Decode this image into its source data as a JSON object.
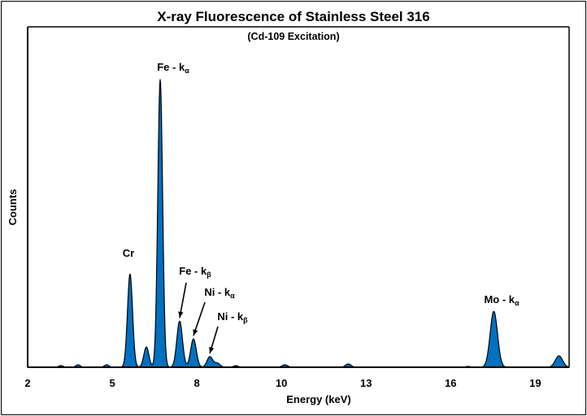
{
  "chart_data": {
    "type": "area",
    "title": "X-ray Fluorescence of Stainless Steel 316",
    "subtitle": "(Cd-109 Excitation)",
    "xlabel": "Energy (keV)",
    "ylabel": "Counts",
    "xlim": [
      2,
      21.2
    ],
    "ylim": [
      0,
      420
    ],
    "xticks": [
      {
        "value": 2,
        "label": "2"
      },
      {
        "value": 5,
        "label": "5"
      },
      {
        "value": 8,
        "label": "8"
      },
      {
        "value": 11,
        "label": "10"
      },
      {
        "value": 14,
        "label": "13"
      },
      {
        "value": 17,
        "label": "16"
      },
      {
        "value": 20,
        "label": "19"
      }
    ],
    "grid": false,
    "fill_color": "#0070C0",
    "peaks": [
      {
        "energy": 3.18,
        "counts": 2,
        "width": 0.08
      },
      {
        "energy": 3.79,
        "counts": 3,
        "width": 0.08
      },
      {
        "energy": 4.8,
        "counts": 3,
        "width": 0.08
      },
      {
        "energy": 5.63,
        "counts": 115,
        "width": 0.09
      },
      {
        "energy": 6.21,
        "counts": 25,
        "width": 0.09
      },
      {
        "energy": 6.7,
        "counts": 355,
        "width": 0.085
      },
      {
        "energy": 7.39,
        "counts": 57,
        "width": 0.1
      },
      {
        "energy": 7.88,
        "counts": 35,
        "width": 0.1
      },
      {
        "energy": 8.46,
        "counts": 13,
        "width": 0.1
      },
      {
        "energy": 8.72,
        "counts": 5,
        "width": 0.1
      },
      {
        "energy": 9.38,
        "counts": 2,
        "width": 0.08
      },
      {
        "energy": 11.12,
        "counts": 3,
        "width": 0.1
      },
      {
        "energy": 13.37,
        "counts": 4,
        "width": 0.1
      },
      {
        "energy": 17.61,
        "counts": 1,
        "width": 0.08
      },
      {
        "energy": 18.53,
        "counts": 69,
        "width": 0.13
      },
      {
        "energy": 20.84,
        "counts": 14,
        "width": 0.13
      }
    ],
    "annotations": [
      {
        "text": "Cr",
        "sub": "",
        "energy": 5.63,
        "arrow": false
      },
      {
        "text": "Fe - k",
        "sub": "α",
        "energy": 6.7,
        "arrow": false
      },
      {
        "text": "Fe - k",
        "sub": "β",
        "energy": 7.39,
        "arrow": true
      },
      {
        "text": "Ni - k",
        "sub": "α",
        "energy": 7.88,
        "arrow": true
      },
      {
        "text": "Ni - k",
        "sub": "β",
        "energy": 8.46,
        "arrow": true
      },
      {
        "text": "Mo - k",
        "sub": "α",
        "energy": 18.53,
        "arrow": false
      }
    ]
  }
}
